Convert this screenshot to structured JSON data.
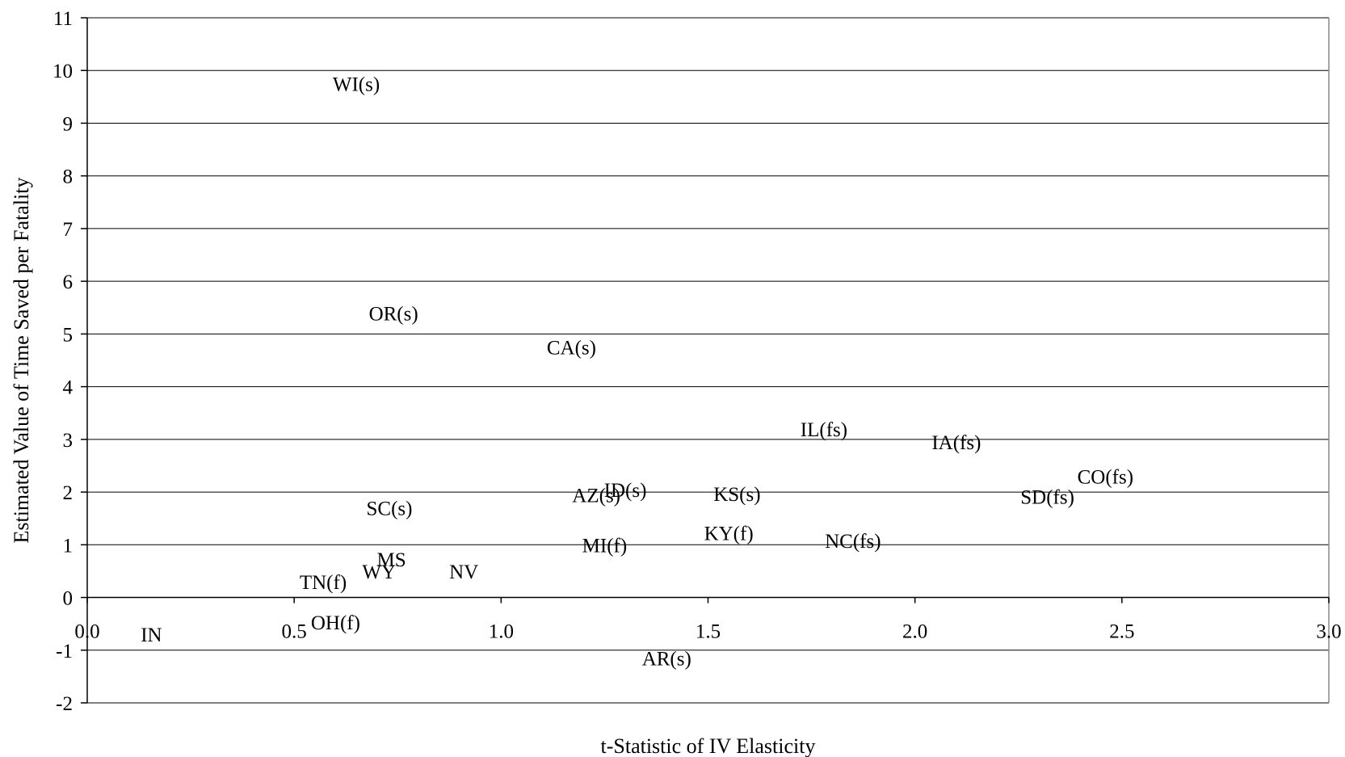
{
  "chart_data": {
    "type": "scatter",
    "title": "",
    "xlabel": "t-Statistic of IV Elasticity",
    "ylabel": "Estimated Value of Time Saved per Fatality",
    "xlim": [
      0,
      3
    ],
    "ylim": [
      -2,
      11
    ],
    "x_ticks": [
      "0.0",
      "0.5",
      "1.0",
      "1.5",
      "2.0",
      "2.5",
      "3.0"
    ],
    "y_ticks": [
      "11",
      "10",
      "9",
      "8",
      "7",
      "6",
      "5",
      "4",
      "3",
      "2",
      "1",
      "0",
      "-1",
      "-2"
    ],
    "grid": "horizontal",
    "legend": "none",
    "points": [
      {
        "label": "WI(s)",
        "x": 0.65,
        "y": 9.75
      },
      {
        "label": "OR(s)",
        "x": 0.74,
        "y": 5.4
      },
      {
        "label": "CA(s)",
        "x": 1.17,
        "y": 4.75
      },
      {
        "label": "IL(fs)",
        "x": 1.78,
        "y": 3.2
      },
      {
        "label": "IA(fs)",
        "x": 2.1,
        "y": 2.95
      },
      {
        "label": "CO(fs)",
        "x": 2.46,
        "y": 2.3
      },
      {
        "label": "SD(fs)",
        "x": 2.32,
        "y": 1.92
      },
      {
        "label": "ID(s)",
        "x": 1.3,
        "y": 2.05
      },
      {
        "label": "AZ(s)",
        "x": 1.23,
        "y": 1.95
      },
      {
        "label": "KS(s)",
        "x": 1.57,
        "y": 1.97
      },
      {
        "label": "SC(s)",
        "x": 0.73,
        "y": 1.7
      },
      {
        "label": "KY(f)",
        "x": 1.55,
        "y": 1.23
      },
      {
        "label": "NC(fs)",
        "x": 1.85,
        "y": 1.08
      },
      {
        "label": "MI(f)",
        "x": 1.25,
        "y": 1.0
      },
      {
        "label": "MS",
        "x": 0.735,
        "y": 0.73
      },
      {
        "label": "WY",
        "x": 0.705,
        "y": 0.5
      },
      {
        "label": "NV",
        "x": 0.91,
        "y": 0.5
      },
      {
        "label": "TN(f)",
        "x": 0.57,
        "y": 0.3
      },
      {
        "label": "OH(f)",
        "x": 0.6,
        "y": -0.47
      },
      {
        "label": "IN",
        "x": 0.155,
        "y": -0.7
      },
      {
        "label": "AR(s)",
        "x": 1.4,
        "y": -1.15
      }
    ]
  }
}
